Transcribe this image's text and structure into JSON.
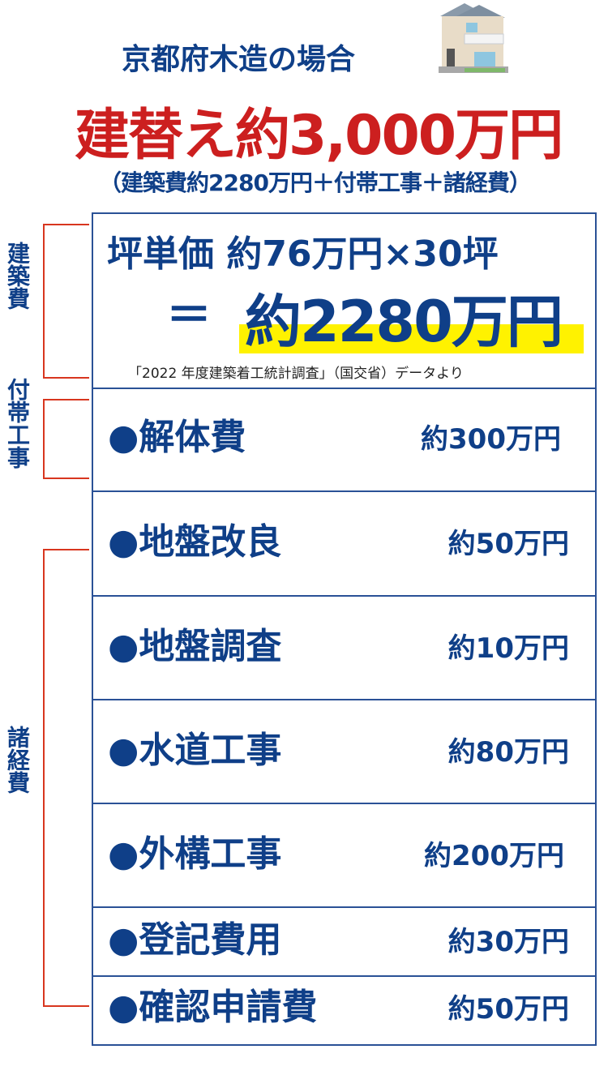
{
  "header": {
    "subtitle": "京都府木造の場合",
    "house_icon": "house-icon",
    "headline": "建替え約3,000万円",
    "breakdown": "（建築費約2280万円＋付帯工事＋諸経費）"
  },
  "main_box": {
    "formula": "坪単価 約76万円×30坪",
    "equals": "＝",
    "result": "約2280万円",
    "source": "「2022 年度建築着工統計調査」（国交省）データより"
  },
  "categories": [
    {
      "label": "建築費"
    },
    {
      "label": "付帯工事"
    },
    {
      "label": "諸経費"
    }
  ],
  "items": [
    {
      "name": "●解体費",
      "value": "約300万円"
    },
    {
      "name": "●地盤改良",
      "value": "約50万円"
    },
    {
      "name": "●地盤調査",
      "value": "約10万円"
    },
    {
      "name": "●水道工事",
      "value": "約80万円"
    },
    {
      "name": "●外構工事",
      "value": "約200万円"
    },
    {
      "name": "●登記費用",
      "value": "約30万円"
    },
    {
      "name": "●確認申請費",
      "value": "約50万円"
    }
  ],
  "colors": {
    "blue": "#0f3f88",
    "red": "#cc1f1f",
    "highlight": "#fff200",
    "bracket": "#d8361f"
  }
}
